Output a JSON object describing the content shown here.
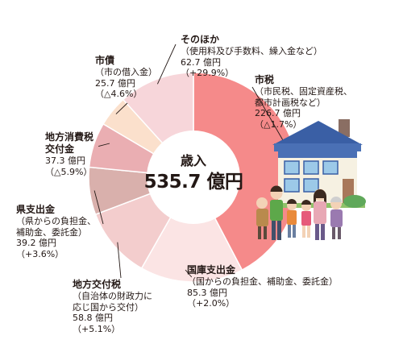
{
  "chart_data": {
    "type": "pie",
    "center": {
      "title": "歳入",
      "total": "535.7 億円"
    },
    "slices": [
      {
        "name": "市税",
        "detail": [
          "（市民税、固定資産税、",
          "都市計画税など）"
        ],
        "amount": "226.7 億円",
        "change": "（△1.7%）",
        "value": 226.7,
        "color": "#f58a8a"
      },
      {
        "name": "国庫支出金",
        "detail": [
          "（国からの負担金、補助金、委託金）"
        ],
        "amount": "85.3 億円",
        "change": "（+2.0%）",
        "value": 85.3,
        "color": "#fbe4e4"
      },
      {
        "name": "地方交付税",
        "detail": [
          "（自治体の財政力に",
          "応じ国から交付）"
        ],
        "amount": "58.8 億円",
        "change": "（+5.1%）",
        "value": 58.8,
        "color": "#f3cdcd"
      },
      {
        "name": "県支出金",
        "detail": [
          "（県からの負担金、",
          "補助金、委託金）"
        ],
        "amount": "39.2 億円",
        "change": "（+3.6%）",
        "value": 39.2,
        "color": "#d9b0ac"
      },
      {
        "name": "地方消費税",
        "name2": "交付金",
        "detail": [],
        "amount": "37.3 億円",
        "change": "（△5.9%）",
        "value": 37.3,
        "color": "#eaaeb2"
      },
      {
        "name": "市債",
        "detail": [
          "（市の借入金）"
        ],
        "amount": "25.7 億円",
        "change": "（△4.6%）",
        "value": 25.7,
        "color": "#fbe0cc"
      },
      {
        "name": "そのほか",
        "detail": [
          "（使用料及び手数料、繰入金など）"
        ],
        "amount": "62.7 億円",
        "change": "（+29.9%）",
        "value": 62.7,
        "color": "#f7d6da"
      }
    ]
  }
}
